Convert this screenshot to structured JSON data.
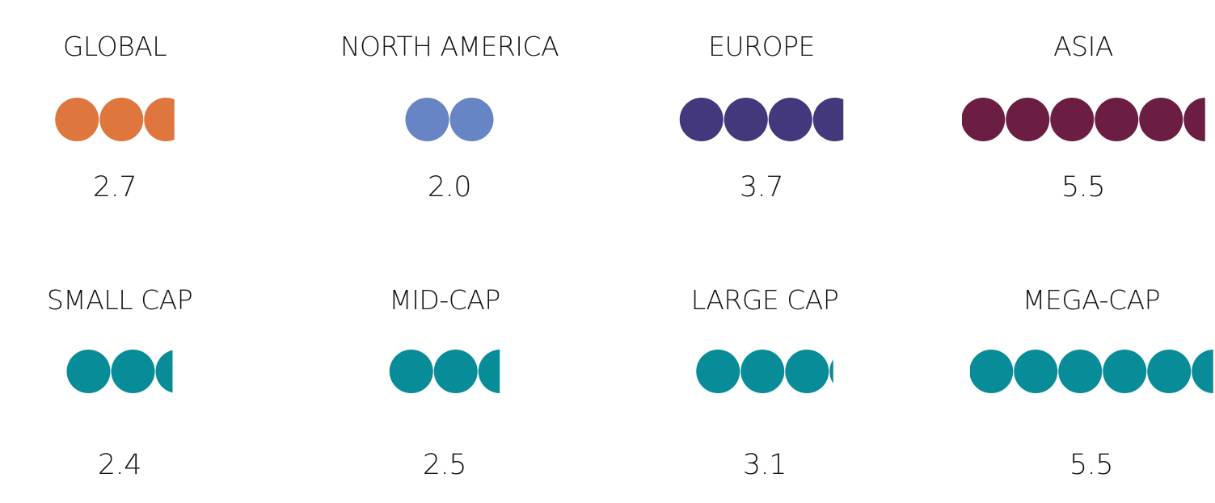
{
  "chart_data": {
    "type": "unit-dot",
    "colors": {
      "global": "#DE763E",
      "north_america": "#6784C4",
      "europe": "#43387C",
      "asia": "#6B1E42",
      "cap": "#088C98"
    },
    "rows": [
      {
        "items": [
          {
            "name": "GLOBAL",
            "value": 2.7,
            "display": "2.7",
            "color": "#DE763E"
          },
          {
            "name": "NORTH AMERICA",
            "value": 2.0,
            "display": "2.0",
            "color": "#6784C4"
          },
          {
            "name": "EUROPE",
            "value": 3.7,
            "display": "3.7",
            "color": "#43387C"
          },
          {
            "name": "ASIA",
            "value": 5.5,
            "display": "5.5",
            "color": "#6B1E42"
          }
        ]
      },
      {
        "items": [
          {
            "name": "SMALL CAP",
            "value": 2.4,
            "display": "2.4",
            "color": "#088C98"
          },
          {
            "name": "MID-CAP",
            "value": 2.5,
            "display": "2.5",
            "color": "#088C98"
          },
          {
            "name": "LARGE CAP",
            "value": 3.1,
            "display": "3.1",
            "color": "#088C98"
          },
          {
            "name": "MEGA-CAP",
            "value": 5.5,
            "display": "5.5",
            "color": "#088C98"
          }
        ]
      }
    ]
  }
}
